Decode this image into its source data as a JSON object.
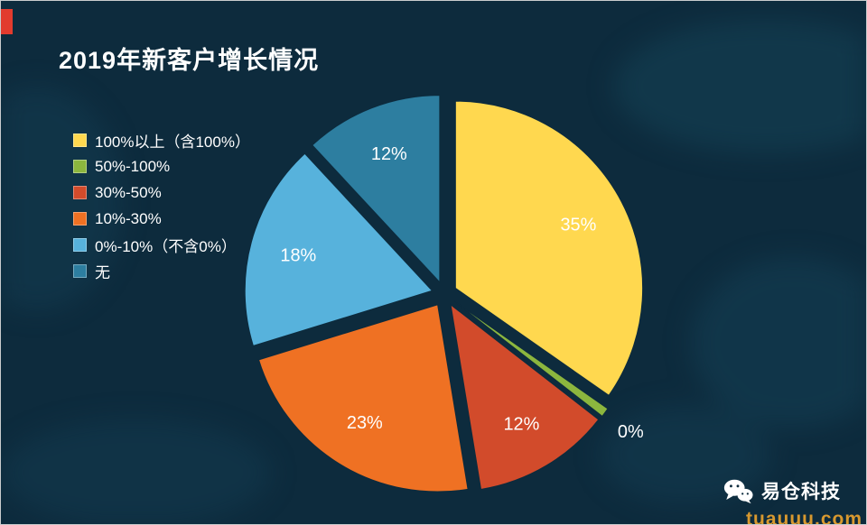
{
  "title": "2019年新客户增长情况",
  "chart_data": {
    "type": "pie",
    "title": "2019年新客户增长情况",
    "legend_position": "left",
    "exploded": true,
    "slices": [
      {
        "label": "100%以上（含100%）",
        "value": 35,
        "data_label": "35%",
        "color": "#ffd84f"
      },
      {
        "label": "50%-100%",
        "value": 0,
        "data_label": "0%",
        "color": "#8cb63e"
      },
      {
        "label": "30%-50%",
        "value": 12,
        "data_label": "12%",
        "color": "#d24b2b"
      },
      {
        "label": "10%-30%",
        "value": 23,
        "data_label": "23%",
        "color": "#ef7123"
      },
      {
        "label": "0%-10%（不含0%）",
        "value": 18,
        "data_label": "18%",
        "color": "#57b2dc"
      },
      {
        "label": "无",
        "value": 12,
        "data_label": "12%",
        "color": "#2d7ea0"
      }
    ]
  },
  "footer": {
    "brand": "易仓科技",
    "brand_icon": "wechat-icon",
    "watermark": "tuauuu.com"
  },
  "colors": {
    "background": "#0d2b3d",
    "accent_red": "#e23b2e",
    "watermark_orange": "#d8992f",
    "map_shape": "#17465c"
  }
}
